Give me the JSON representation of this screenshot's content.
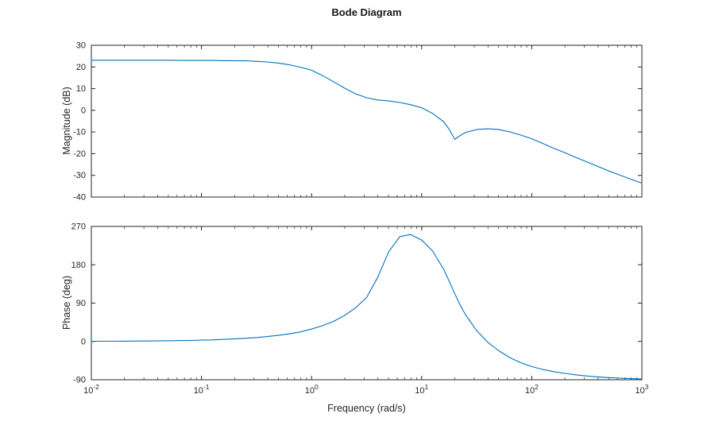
{
  "figure": {
    "title": "Bode Diagram",
    "xlabel": "Frequency (rad/s)",
    "background": "#ffffff",
    "line_color": "#0072BD",
    "axis_color": "#262626"
  },
  "chart_data": [
    {
      "type": "line",
      "name": "magnitude",
      "title": "Bode Diagram",
      "ylabel": "Magnitude (dB)",
      "xlabel": "Frequency (rad/s)",
      "xscale": "log",
      "grid": false,
      "legend": "none",
      "xlim": [
        0.01,
        1000
      ],
      "ylim": [
        -40,
        30
      ],
      "yticks": [
        -40,
        -30,
        -20,
        -10,
        0,
        10,
        20,
        30
      ],
      "xticks": [
        0.01,
        0.1,
        1,
        10,
        100,
        1000
      ],
      "xticklabels": [
        "10^-2",
        "10^-1",
        "10^0",
        "10^1",
        "10^2",
        "10^3"
      ],
      "show_xticklabels": false,
      "x": [
        0.01,
        0.0126,
        0.0158,
        0.02,
        0.0251,
        0.0316,
        0.0398,
        0.0501,
        0.0631,
        0.0794,
        0.1,
        0.126,
        0.158,
        0.2,
        0.251,
        0.316,
        0.398,
        0.501,
        0.631,
        0.794,
        1,
        1.26,
        1.58,
        2,
        2.51,
        3.16,
        3.98,
        5.01,
        6.31,
        7.94,
        10,
        12.6,
        15.8,
        17.8,
        20,
        22.4,
        25.1,
        31.6,
        39.8,
        50.1,
        63.1,
        79.4,
        100,
        126,
        158,
        200,
        251,
        316,
        398,
        501,
        631,
        794,
        1000
      ],
      "y": [
        23.1,
        23.1,
        23.1,
        23.1,
        23.1,
        23.1,
        23.1,
        23.1,
        23.0,
        23.0,
        23.0,
        23.0,
        22.9,
        22.9,
        22.8,
        22.6,
        22.3,
        21.8,
        21.0,
        19.9,
        18.5,
        16.0,
        13.2,
        10.2,
        7.6,
        5.8,
        4.8,
        4.3,
        3.6,
        2.6,
        1.2,
        -1.5,
        -5.2,
        -8.8,
        -13.4,
        -11.6,
        -10.2,
        -8.9,
        -8.5,
        -8.9,
        -9.9,
        -11.4,
        -13.1,
        -15.3,
        -17.5,
        -19.6,
        -21.7,
        -23.8,
        -25.9,
        -28.0,
        -29.9,
        -31.8,
        -33.6
      ]
    },
    {
      "type": "line",
      "name": "phase",
      "ylabel": "Phase (deg)",
      "xlabel": "Frequency (rad/s)",
      "xscale": "log",
      "grid": false,
      "legend": "none",
      "xlim": [
        0.01,
        1000
      ],
      "ylim": [
        -90,
        270
      ],
      "yticks": [
        -90,
        0,
        90,
        180,
        270
      ],
      "xticks": [
        0.01,
        0.1,
        1,
        10,
        100,
        1000
      ],
      "xticklabels": [
        "10^-2",
        "10^-1",
        "10^0",
        "10^1",
        "10^2",
        "10^3"
      ],
      "show_xticklabels": true,
      "x": [
        0.01,
        0.0126,
        0.0158,
        0.02,
        0.0251,
        0.0316,
        0.0398,
        0.0501,
        0.0631,
        0.0794,
        0.1,
        0.126,
        0.158,
        0.2,
        0.251,
        0.316,
        0.398,
        0.501,
        0.631,
        0.794,
        1,
        1.26,
        1.58,
        2,
        2.51,
        3.16,
        3.98,
        5.01,
        6.31,
        7.94,
        10,
        12.6,
        15.8,
        17.8,
        20,
        22.4,
        25.1,
        31.6,
        39.8,
        50.1,
        63.1,
        79.4,
        100,
        126,
        158,
        200,
        251,
        316,
        398,
        501,
        631,
        794,
        1000
      ],
      "y": [
        0.3,
        0.4,
        0.5,
        0.6,
        0.8,
        1.0,
        1.2,
        1.5,
        1.9,
        2.4,
        3.0,
        3.7,
        4.7,
        5.8,
        7.3,
        9.1,
        11.4,
        14.2,
        17.8,
        22.2,
        29,
        37,
        47,
        61,
        79,
        103,
        150,
        210,
        246,
        251,
        238,
        212,
        170,
        141,
        112,
        85,
        62,
        25,
        -2,
        -22,
        -38,
        -50,
        -59,
        -66,
        -71,
        -75,
        -78.5,
        -81.2,
        -83.3,
        -85.0,
        -86.3,
        -87.3,
        -88.0
      ]
    }
  ]
}
